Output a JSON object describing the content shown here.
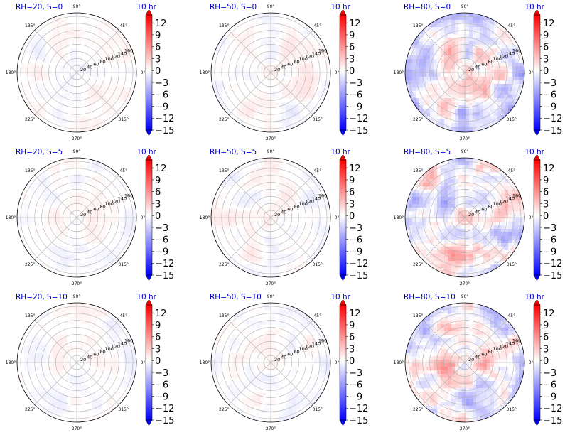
{
  "figure": {
    "colormap": [
      "#0000ff",
      "#ffffff",
      "#ff0000"
    ],
    "colorbar_range": [
      -15,
      14
    ],
    "colorbar_ticks": [
      12,
      9,
      6,
      3,
      0,
      -3,
      -6,
      -9,
      -12,
      -15
    ],
    "colorbar_tick_labels": [
      "12",
      "9",
      "6",
      "3",
      "0",
      "−3",
      "−6",
      "−9",
      "−12",
      "−15"
    ],
    "angle_ticks": [
      {
        "deg": 0,
        "label": "0°"
      },
      {
        "deg": 45,
        "label": "45°"
      },
      {
        "deg": 90,
        "label": "90°"
      },
      {
        "deg": 135,
        "label": "135°"
      },
      {
        "deg": 180,
        "label": "180°"
      },
      {
        "deg": 225,
        "label": "225°"
      },
      {
        "deg": 270,
        "label": "270°"
      },
      {
        "deg": 315,
        "label": "315°"
      }
    ],
    "radial_ticks": [
      20,
      40,
      60,
      80,
      100,
      120,
      140,
      160
    ],
    "radial_tick_labels": [
      "20",
      "40",
      "60",
      "80",
      "100",
      "120",
      "140",
      "160"
    ],
    "title_color": "#0000cc"
  },
  "chart_data": [
    {
      "type": "heatmap",
      "projection": "polar",
      "title": "RH=20, S=0",
      "time_label": "10 hr",
      "amplitude": 1.5,
      "center_bias": 0.2,
      "rlim": [
        0,
        170
      ]
    },
    {
      "type": "heatmap",
      "projection": "polar",
      "title": "RH=50, S=0",
      "time_label": "10 hr",
      "amplitude": 2.0,
      "center_bias": 0.3,
      "rlim": [
        0,
        170
      ]
    },
    {
      "type": "heatmap",
      "projection": "polar",
      "title": "RH=80, S=0",
      "time_label": "10 hr",
      "amplitude": 7.5,
      "center_bias": 4.0,
      "rlim": [
        0,
        170
      ]
    },
    {
      "type": "heatmap",
      "projection": "polar",
      "title": "RH=20, S=5",
      "time_label": "10 hr",
      "amplitude": 1.5,
      "center_bias": 0.3,
      "rlim": [
        0,
        170
      ]
    },
    {
      "type": "heatmap",
      "projection": "polar",
      "title": "RH=50, S=5",
      "time_label": "10 hr",
      "amplitude": 2.0,
      "center_bias": 0.4,
      "rlim": [
        0,
        170
      ]
    },
    {
      "type": "heatmap",
      "projection": "polar",
      "title": "RH=80, S=5",
      "time_label": "10 hr",
      "amplitude": 8.0,
      "center_bias": 2.5,
      "rlim": [
        0,
        170
      ]
    },
    {
      "type": "heatmap",
      "projection": "polar",
      "title": "RH=20, S=10",
      "time_label": "10 hr",
      "amplitude": 1.5,
      "center_bias": 0.3,
      "rlim": [
        0,
        170
      ]
    },
    {
      "type": "heatmap",
      "projection": "polar",
      "title": "RH=50, S=10",
      "time_label": "10 hr",
      "amplitude": 1.8,
      "center_bias": 0.4,
      "rlim": [
        0,
        170
      ]
    },
    {
      "type": "heatmap",
      "projection": "polar",
      "title": "RH=80, S=10",
      "time_label": "10 hr",
      "amplitude": 8.0,
      "center_bias": 2.5,
      "rlim": [
        0,
        170
      ]
    }
  ]
}
